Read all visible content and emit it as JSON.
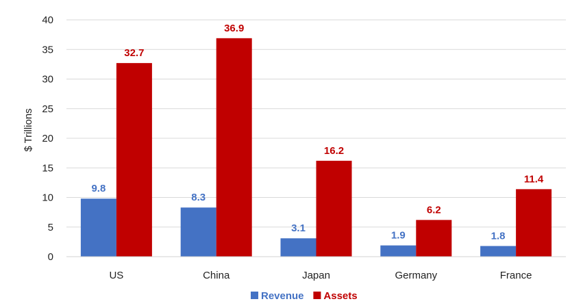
{
  "chart_data": {
    "type": "bar",
    "title": "",
    "xlabel": "",
    "ylabel": "$ Trillions",
    "ylim": [
      0,
      40
    ],
    "yticks": [
      0,
      5,
      10,
      15,
      20,
      25,
      30,
      35,
      40
    ],
    "grid": true,
    "legend_position": "bottom",
    "categories": [
      "US",
      "China",
      "Japan",
      "Germany",
      "France"
    ],
    "series": [
      {
        "name": "Revenue",
        "values": [
          9.8,
          8.3,
          3.1,
          1.9,
          1.8
        ],
        "color": "#4472c4",
        "label_color": "#4472c4"
      },
      {
        "name": "Assets",
        "values": [
          32.7,
          36.9,
          16.2,
          6.2,
          11.4
        ],
        "color": "#c00000",
        "label_color": "#c00000"
      }
    ]
  }
}
